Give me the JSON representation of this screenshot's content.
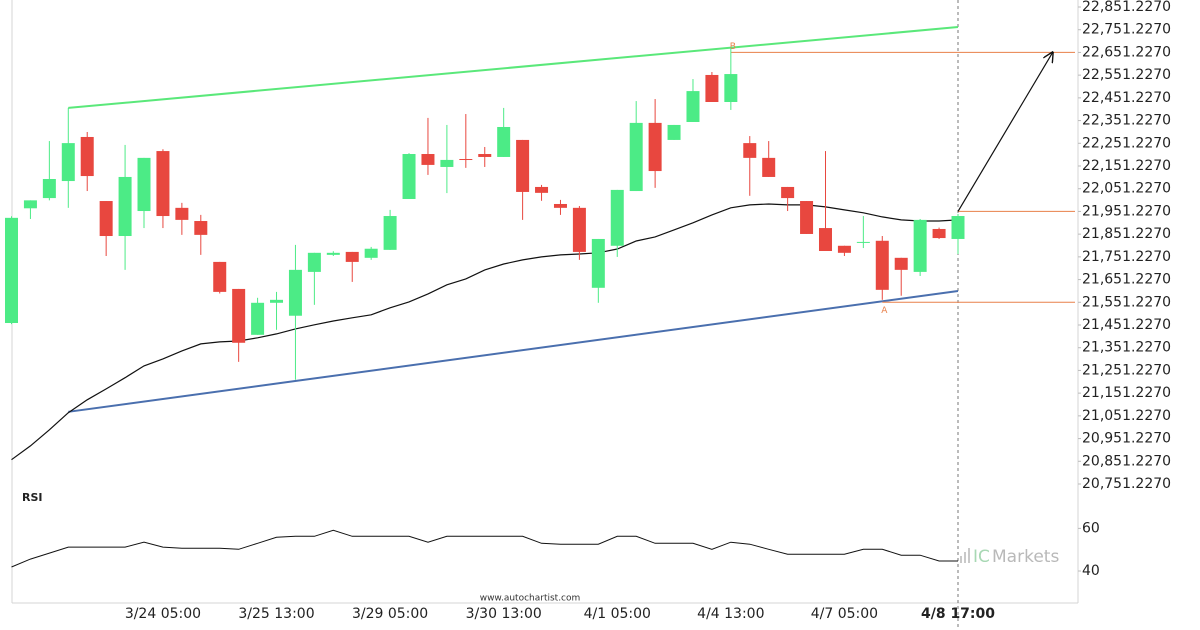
{
  "chart_data": {
    "type": "candlestick",
    "categories": [
      null,
      null,
      null,
      null,
      null,
      null,
      null,
      null,
      "3/24 05:00",
      null,
      null,
      null,
      null,
      null,
      "3/25 13:00",
      null,
      null,
      null,
      null,
      null,
      "3/29 05:00",
      null,
      null,
      null,
      null,
      null,
      "3/30 13:00",
      null,
      null,
      null,
      null,
      null,
      "4/1 05:00",
      null,
      null,
      null,
      null,
      null,
      "4/4 13:00",
      null,
      null,
      null,
      null,
      null,
      "4/7 05:00",
      null,
      null,
      null,
      null,
      null,
      "4/8 17:00"
    ],
    "open": [
      21460,
      21965,
      22010,
      22085,
      22279,
      21997,
      21843,
      21953,
      22217,
      21967,
      21909,
      21729,
      21610,
      21408,
      21549,
      21492,
      21685,
      21760,
      21773,
      21747,
      21782,
      22006,
      22204,
      22147,
      22182,
      22204,
      22191,
      22266,
      22059,
      21984,
      21967,
      21615,
      21800,
      22041,
      22341,
      22266,
      22345,
      22552,
      22433,
      22252,
      22187,
      22059,
      21997,
      21878,
      21800,
      21813,
      21822,
      21747,
      21685,
      21874,
      21830
    ],
    "high": [
      21930,
      22000,
      22261,
      22407,
      22301,
      21997,
      22244,
      22187,
      22225,
      21989,
      21936,
      21729,
      21610,
      21571,
      21597,
      21804,
      21769,
      21776,
      21773,
      21795,
      21958,
      22208,
      22363,
      22332,
      22380,
      22235,
      22407,
      22266,
      22068,
      22002,
      21975,
      21830,
      22046,
      22437,
      22446,
      22332,
      22534,
      22565,
      22671,
      22283,
      22261,
      22059,
      21997,
      22217,
      21800,
      21931,
      21843,
      21747,
      21918,
      21880,
      21940
    ],
    "low": [
      21455,
      21918,
      22000,
      21967,
      22041,
      21755,
      21694,
      21878,
      21878,
      21848,
      21760,
      21590,
      21289,
      21408,
      21430,
      21210,
      21540,
      21755,
      21641,
      21738,
      21782,
      22006,
      22112,
      22032,
      22143,
      22147,
      22191,
      21914,
      21998,
      21936,
      21738,
      21549,
      21751,
      22041,
      22055,
      22266,
      22345,
      22433,
      22398,
      22020,
      22103,
      21953,
      21852,
      21777,
      21755,
      21790,
      21562,
      21580,
      21667,
      21830,
      21764
    ],
    "close": [
      21923,
      22000,
      22094,
      22252,
      22107,
      21843,
      22103,
      22187,
      21931,
      21914,
      21848,
      21597,
      21373,
      21549,
      21562,
      21694,
      21769,
      21769,
      21729,
      21787,
      21931,
      22204,
      22156,
      22178,
      22178,
      22191,
      22323,
      22037,
      22033,
      21967,
      21773,
      21830,
      22046,
      22341,
      22129,
      22332,
      22481,
      22433,
      22556,
      22187,
      22103,
      22010,
      21852,
      21777,
      21769,
      21817,
      21606,
      21694,
      21914,
      21834,
      21931
    ],
    "up_color": "#4ceb86",
    "down_color": "#e8473f",
    "ylim": [
      20751.227,
      22851.227
    ],
    "yticks": [
      {
        "value": 20751.227,
        "label": "20,751.2270"
      },
      {
        "value": 20851.227,
        "label": "20,851.2270"
      },
      {
        "value": 20951.227,
        "label": "20,951.2270"
      },
      {
        "value": 21051.227,
        "label": "21,051.2270"
      },
      {
        "value": 21151.227,
        "label": "21,151.2270"
      },
      {
        "value": 21251.227,
        "label": "21,251.2270"
      },
      {
        "value": 21351.227,
        "label": "21,351.2270"
      },
      {
        "value": 21451.227,
        "label": "21,451.2270"
      },
      {
        "value": 21551.227,
        "label": "21,551.2270"
      },
      {
        "value": 21651.227,
        "label": "21,651.2270"
      },
      {
        "value": 21751.227,
        "label": "21,751.2270"
      },
      {
        "value": 21851.227,
        "label": "21,851.2270"
      },
      {
        "value": 21951.227,
        "label": "21,951.2270"
      },
      {
        "value": 22051.227,
        "label": "22,051.2270"
      },
      {
        "value": 22151.227,
        "label": "22,151.2270"
      },
      {
        "value": 22251.227,
        "label": "22,251.2270"
      },
      {
        "value": 22351.227,
        "label": "22,351.2270"
      },
      {
        "value": 22451.227,
        "label": "22,451.2270"
      },
      {
        "value": 22551.227,
        "label": "22,551.2270"
      },
      {
        "value": 22651.227,
        "label": "22,651.2270"
      },
      {
        "value": 22751.227,
        "label": "22,751.2270"
      },
      {
        "value": 22851.227,
        "label": "22,851.2270"
      }
    ],
    "moving_average": {
      "color": "#111111",
      "values": [
        20858,
        20919,
        20990,
        21065,
        21122,
        21170,
        21219,
        21271,
        21302,
        21337,
        21368,
        21377,
        21381,
        21395,
        21412,
        21434,
        21452,
        21469,
        21483,
        21496,
        21527,
        21553,
        21588,
        21628,
        21654,
        21694,
        21720,
        21738,
        21751,
        21760,
        21764,
        21769,
        21786,
        21821,
        21839,
        21870,
        21901,
        21936,
        21967,
        21980,
        21984,
        21980,
        21980,
        21971,
        21958,
        21945,
        21927,
        21914,
        21909,
        21909,
        21914
      ]
    },
    "channel": [
      {
        "color": "#5ae87a",
        "x": [
          3,
          50
        ],
        "values": [
          22407,
          22763
        ]
      },
      {
        "color": "#4a6fae",
        "x": [
          3,
          50
        ],
        "values": [
          21069,
          21601
        ]
      }
    ],
    "levels_color": "#e8804a",
    "levels": [
      {
        "value": 22651.227,
        "start": 38,
        "label": "B"
      },
      {
        "value": 21551.227,
        "start": 46,
        "label": "A"
      },
      {
        "value": 21951.227,
        "start": 50
      }
    ],
    "forecast": {
      "color": "#111111",
      "x": [
        50,
        55
      ],
      "values": [
        21951.227,
        22651.227
      ]
    },
    "rsi": {
      "title": "RSI",
      "color": "#111111",
      "ylim": [
        25,
        78
      ],
      "yticks": [
        40,
        60
      ],
      "values": [
        41.9,
        45.6,
        48.4,
        51.2,
        51.2,
        51.2,
        51.2,
        53.5,
        51.2,
        50.7,
        50.7,
        50.7,
        50.2,
        53,
        55.8,
        56.3,
        56.3,
        59.1,
        56.3,
        56.3,
        56.3,
        56.3,
        53.5,
        56.3,
        56.3,
        56.3,
        56.3,
        56.3,
        53,
        52.6,
        52.6,
        52.6,
        56.3,
        56.3,
        53,
        53,
        53,
        50.2,
        53.5,
        52.6,
        50.2,
        47.9,
        47.9,
        47.9,
        47.9,
        50.2,
        50.2,
        47.4,
        47.4,
        44.7,
        44.7
      ]
    },
    "watermark": "www.autochartist.com",
    "brand_prefix": "IC",
    "brand_name": "Markets"
  }
}
